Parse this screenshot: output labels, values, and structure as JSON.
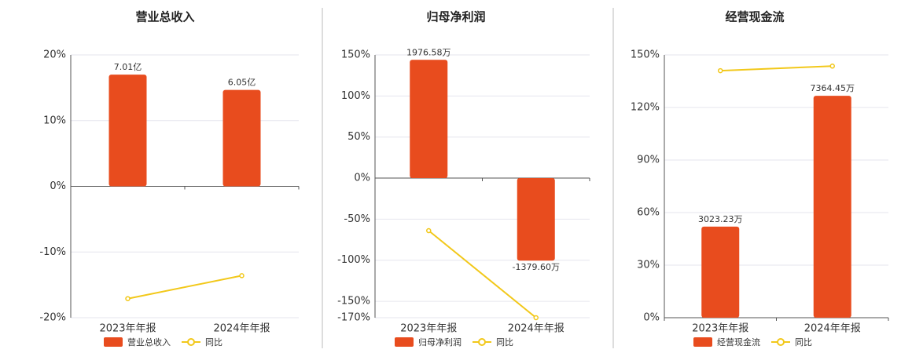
{
  "chart_data": [
    {
      "type": "bar",
      "title": "营业总收入",
      "categories": [
        "2023年年报",
        "2024年年报"
      ],
      "series": [
        {
          "name": "营业总收入",
          "color": "#e84c1e",
          "axis": "y2",
          "values": [
            7.01,
            6.05
          ],
          "value_labels": [
            "7.01亿",
            "6.05亿"
          ]
        },
        {
          "name": "同比",
          "type": "line",
          "color": "#f2c81a",
          "values": [
            -17.1,
            -13.6
          ]
        }
      ],
      "ylim": [
        -20,
        20
      ],
      "yticks": [
        {
          "value": -20,
          "label": "-20%"
        },
        {
          "value": -10,
          "label": "-10%"
        },
        {
          "value": 0,
          "label": "0%"
        },
        {
          "value": 10,
          "label": "10%"
        },
        {
          "value": 20,
          "label": "20%"
        }
      ],
      "y2lim": [
        -8.25,
        8.25
      ],
      "grid": true
    },
    {
      "type": "bar",
      "title": "归母净利润",
      "categories": [
        "2023年年报",
        "2024年年报"
      ],
      "series": [
        {
          "name": "归母净利润",
          "color": "#e84c1e",
          "axis": "y2",
          "values": [
            1976.58,
            -1379.6
          ],
          "value_labels": [
            "1976.58万",
            "-1379.60万"
          ]
        },
        {
          "name": "同比",
          "type": "line",
          "color": "#f2c81a",
          "values": [
            -64,
            -170
          ]
        }
      ],
      "ylim": [
        -170,
        150
      ],
      "yticks": [
        {
          "value": -170,
          "label": "-170%"
        },
        {
          "value": -150,
          "label": "-150%"
        },
        {
          "value": -100,
          "label": "-100%"
        },
        {
          "value": -50,
          "label": "-50%"
        },
        {
          "value": 0,
          "label": "0%"
        },
        {
          "value": 50,
          "label": "50%"
        },
        {
          "value": 100,
          "label": "100%"
        },
        {
          "value": 150,
          "label": "150%"
        }
      ],
      "y2lim": [
        -2334,
        2059
      ],
      "grid": true
    },
    {
      "type": "bar",
      "title": "经营现金流",
      "categories": [
        "2023年年报",
        "2024年年报"
      ],
      "series": [
        {
          "name": "经营现金流",
          "color": "#e84c1e",
          "axis": "y2",
          "values": [
            3023.23,
            7364.45
          ],
          "value_labels": [
            "3023.23万",
            "7364.45万"
          ]
        },
        {
          "name": "同比",
          "type": "line",
          "color": "#f2c81a",
          "values": [
            141,
            143.6
          ]
        }
      ],
      "ylim": [
        0,
        150
      ],
      "yticks": [
        {
          "value": 0,
          "label": "0%"
        },
        {
          "value": 30,
          "label": "30%"
        },
        {
          "value": 60,
          "label": "60%"
        },
        {
          "value": 90,
          "label": "90%"
        },
        {
          "value": 120,
          "label": "120%"
        },
        {
          "value": 150,
          "label": "150%"
        }
      ],
      "y2lim": [
        0,
        8721
      ],
      "grid": true
    }
  ]
}
